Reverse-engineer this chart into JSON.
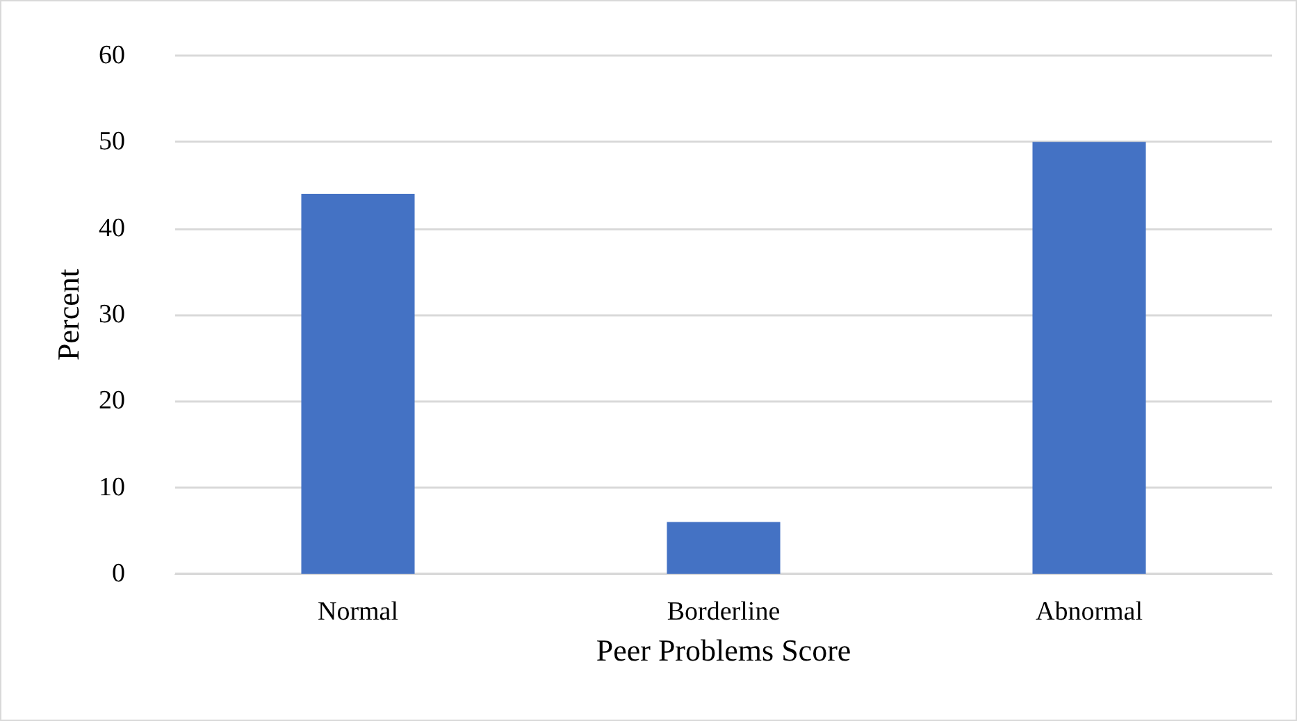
{
  "chart_data": {
    "type": "bar",
    "xlabel": "Peer Problems Score",
    "ylabel": "Percent",
    "categories": [
      "Normal",
      "Borderline",
      "Abnormal"
    ],
    "values": [
      44,
      6,
      50
    ],
    "color": "#4472c4",
    "ylim": [
      0,
      60
    ],
    "yticks": [
      0,
      10,
      20,
      30,
      40,
      50,
      60
    ],
    "grid": "y"
  }
}
